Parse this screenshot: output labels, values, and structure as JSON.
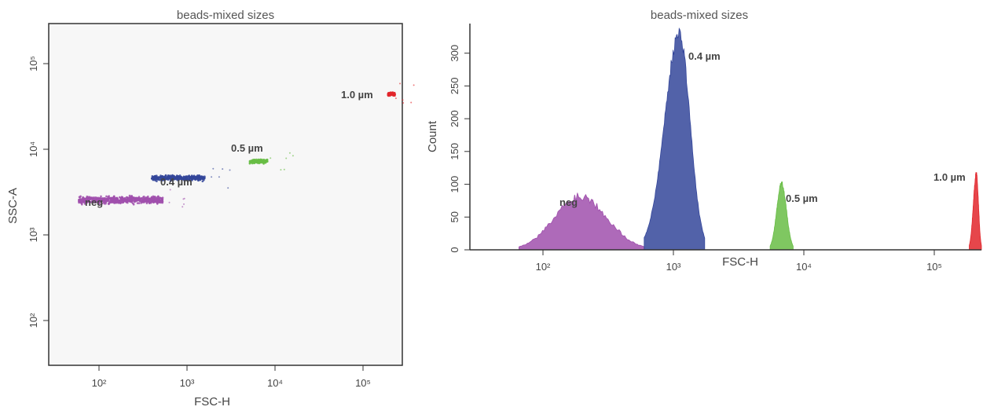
{
  "chart_data": [
    {
      "type": "scatter",
      "title": "beads-mixed sizes",
      "xlabel": "FSC-H",
      "ylabel": "SSC-A",
      "x_scale": "log",
      "y_scale": "log",
      "xlim": [
        30,
        260000
      ],
      "ylim": [
        25,
        250000
      ],
      "x_ticks": [
        {
          "value": 100,
          "label": "10²"
        },
        {
          "value": 1000,
          "label": "10³"
        },
        {
          "value": 10000,
          "label": "10⁴"
        },
        {
          "value": 100000,
          "label": "10⁵"
        }
      ],
      "y_ticks": [
        {
          "value": 100,
          "label": "10²"
        },
        {
          "value": 1000,
          "label": "10³"
        },
        {
          "value": 10000,
          "label": "10⁴"
        },
        {
          "value": 100000,
          "label": "10⁵"
        }
      ],
      "grid": false,
      "series": [
        {
          "label": "neg",
          "color": "#a050ad",
          "x_range": [
            65,
            560
          ],
          "y_range": [
            1700,
            2700
          ],
          "y_center": 2150,
          "n": 40
        },
        {
          "label": "0.4 µm",
          "color": "#34469a",
          "x_range": [
            420,
            1650
          ],
          "y_range": [
            3300,
            4600
          ],
          "y_center": 3900,
          "n": 24
        },
        {
          "label": "0.5 µm",
          "color": "#68bd45",
          "x_range": [
            5200,
            8200
          ],
          "y_range": [
            5400,
            7000
          ],
          "y_center": 6100,
          "n": 12
        },
        {
          "label": "1.0 µm",
          "color": "#e2262c",
          "x_range": [
            180000,
            215000
          ],
          "y_range": [
            34000,
            42000
          ],
          "y_center": 37500,
          "n": 10
        }
      ]
    },
    {
      "type": "area",
      "title": "beads-mixed sizes",
      "xlabel": "FSC-H",
      "ylabel": "Count",
      "x_scale": "log",
      "xlim": [
        25,
        230000
      ],
      "ylim": [
        0,
        345
      ],
      "x_ticks": [
        {
          "value": 100,
          "label": "10²"
        },
        {
          "value": 1000,
          "label": "10³"
        },
        {
          "value": 10000,
          "label": "10⁴"
        },
        {
          "value": 100000,
          "label": "10⁵"
        }
      ],
      "y_ticks": [
        {
          "value": 0,
          "label": "0"
        },
        {
          "value": 50,
          "label": "50"
        },
        {
          "value": 100,
          "label": "100"
        },
        {
          "value": 150,
          "label": "150"
        },
        {
          "value": 200,
          "label": "200"
        },
        {
          "value": 250,
          "label": "250"
        },
        {
          "value": 300,
          "label": "300"
        }
      ],
      "grid": false,
      "series": [
        {
          "label": "neg",
          "color": "#a050ad",
          "peak_x": 180,
          "peak_y": 90,
          "x_range": [
            60,
            560
          ]
        },
        {
          "label": "0.4 µm",
          "color": "#34469a",
          "peak_x": 1050,
          "peak_y": 340,
          "x_range": [
            560,
            1650
          ]
        },
        {
          "label": "0.5 µm",
          "color": "#68bd45",
          "peak_x": 6500,
          "peak_y": 105,
          "x_range": [
            5300,
            8000
          ]
        },
        {
          "label": "1.0 µm",
          "color": "#e2262c",
          "peak_x": 210000,
          "peak_y": 120,
          "x_range": [
            185000,
            230000
          ]
        }
      ]
    }
  ]
}
